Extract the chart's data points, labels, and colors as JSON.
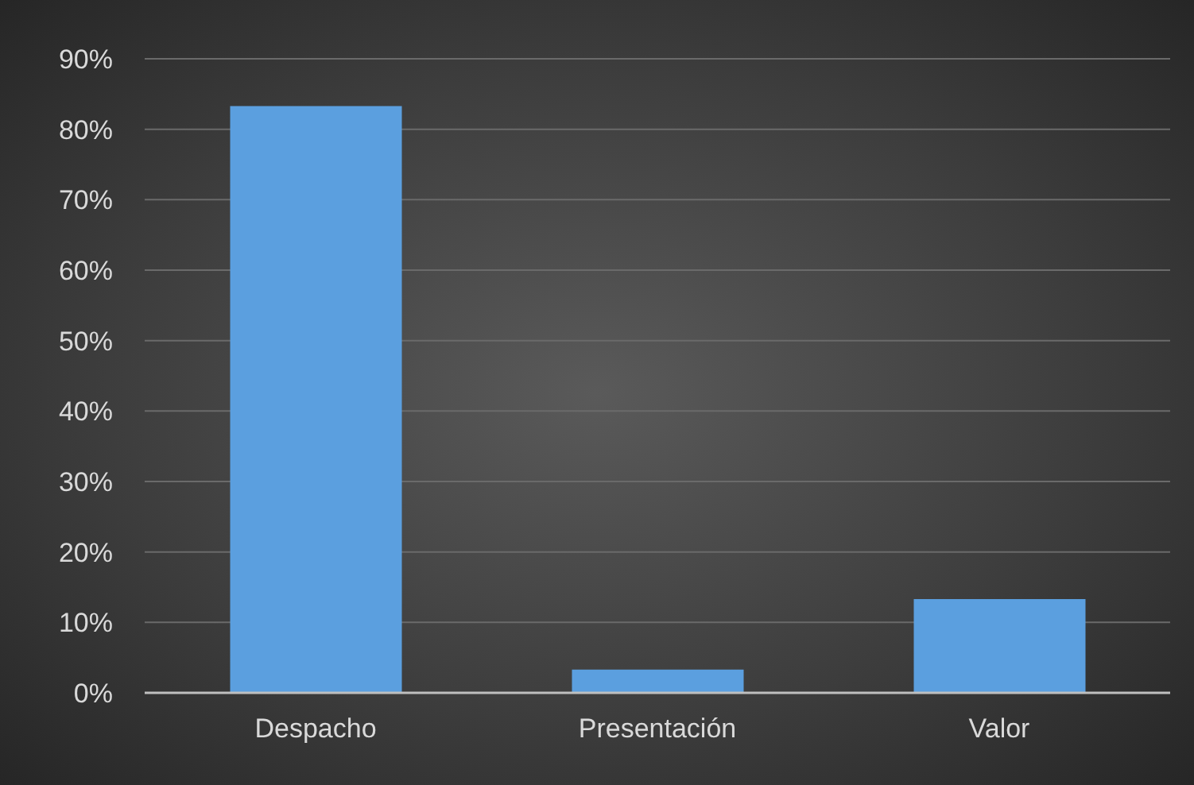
{
  "chart_data": {
    "type": "bar",
    "categories": [
      "Despacho",
      "Presentación",
      "Valor"
    ],
    "values": [
      83.3,
      3.3,
      13.3
    ],
    "color": "#5b9fdf",
    "ylim": [
      0,
      90
    ],
    "yticks": [
      {
        "value": 0,
        "label": "0%"
      },
      {
        "value": 10,
        "label": "10%"
      },
      {
        "value": 20,
        "label": "20%"
      },
      {
        "value": 30,
        "label": "30%"
      },
      {
        "value": 40,
        "label": "40%"
      },
      {
        "value": 50,
        "label": "50%"
      },
      {
        "value": 60,
        "label": "60%"
      },
      {
        "value": 70,
        "label": "70%"
      },
      {
        "value": 80,
        "label": "80%"
      },
      {
        "value": 90,
        "label": "90%"
      }
    ],
    "grid": "y"
  }
}
